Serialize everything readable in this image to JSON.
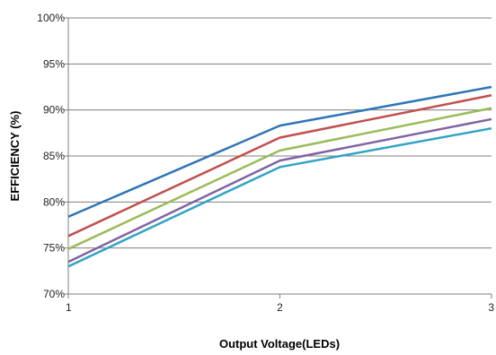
{
  "chart_data": {
    "type": "line",
    "xlabel": "Output Voltage(LEDs)",
    "ylabel": "EFFICIENCY (%)",
    "x": [
      1,
      2,
      3
    ],
    "xlim": [
      1,
      3
    ],
    "ylim": [
      70,
      100
    ],
    "x_ticks": [
      "1",
      "2",
      "3"
    ],
    "y_ticks": [
      {
        "value": 70,
        "label": "70%"
      },
      {
        "value": 75,
        "label": "75%"
      },
      {
        "value": 80,
        "label": "80%"
      },
      {
        "value": 85,
        "label": "85%"
      },
      {
        "value": 90,
        "label": "90%"
      },
      {
        "value": 95,
        "label": "95%"
      },
      {
        "value": 100,
        "label": "100%"
      }
    ],
    "grid": "horizontal",
    "legend": "none",
    "series": [
      {
        "color": "#2E75B6",
        "values": [
          78.4,
          88.3,
          92.5
        ]
      },
      {
        "color": "#C0504D",
        "values": [
          76.3,
          87.0,
          91.6
        ]
      },
      {
        "color": "#9BBB59",
        "values": [
          74.9,
          85.6,
          90.2
        ]
      },
      {
        "color": "#8064A2",
        "values": [
          73.5,
          84.5,
          89.0
        ]
      },
      {
        "color": "#31A3C5",
        "values": [
          73.0,
          83.8,
          88.0
        ]
      }
    ]
  }
}
